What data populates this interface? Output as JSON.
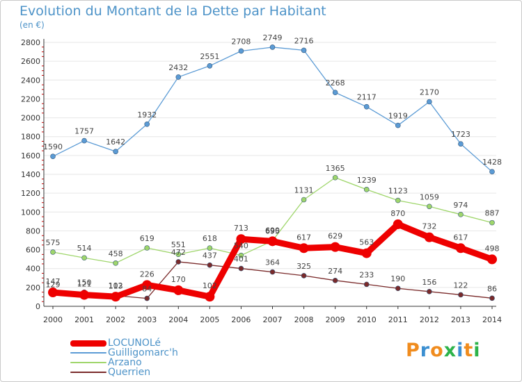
{
  "colors": {
    "title": "#4d93c8",
    "axis": "#333333",
    "grid": "#e6e6e6",
    "red_ticks": "#cc0000"
  },
  "brand": {
    "letters": [
      {
        "char": "P",
        "color": "#f08c1e"
      },
      {
        "char": "r",
        "color": "#3b8fd1"
      },
      {
        "char": "o",
        "color": "#f08c1e"
      },
      {
        "char": "x",
        "color": "#2db34a"
      },
      {
        "char": "i",
        "color": "#3b8fd1"
      },
      {
        "char": "t",
        "color": "#f08c1e"
      },
      {
        "char": "i",
        "color": "#2db34a"
      }
    ]
  },
  "chart_data": {
    "type": "line",
    "title": "Evolution du Montant de la Dette par Habitant",
    "subtitle": "(en €)",
    "xlabel": "",
    "ylabel": "",
    "x": [
      "2000",
      "2001",
      "2002",
      "2003",
      "2004",
      "2005",
      "2006",
      "2007",
      "2008",
      "2009",
      "2010",
      "2011",
      "2012",
      "2013",
      "2014"
    ],
    "ylim": [
      0,
      2800
    ],
    "yticks": [
      0,
      200,
      400,
      600,
      800,
      1000,
      1200,
      1400,
      1600,
      1800,
      2000,
      2200,
      2400,
      2600,
      2800
    ],
    "grid": true,
    "legend_position": "bottom-left",
    "series": [
      {
        "name": "LOCUNOLé",
        "color": "#ee0000",
        "width": 9,
        "values": [
          147,
          121,
          102,
          226,
          170,
          102,
          713,
          690,
          617,
          629,
          563,
          870,
          732,
          617,
          498
        ]
      },
      {
        "name": "Guilligomarc'h",
        "color": "#5b9bd5",
        "width": 1.3,
        "values": [
          1590,
          1757,
          1642,
          1932,
          2432,
          2551,
          2708,
          2749,
          2716,
          2268,
          2117,
          1919,
          2170,
          1723,
          1428
        ]
      },
      {
        "name": "Arzano",
        "color": "#9fd66b",
        "width": 1.3,
        "values": [
          575,
          514,
          458,
          619,
          551,
          618,
          540,
          695,
          1131,
          1365,
          1239,
          1123,
          1059,
          974,
          887
        ]
      },
      {
        "name": "Querrien",
        "color": "#7a2a2a",
        "width": 1.3,
        "values": [
          129,
          150,
          113,
          84,
          472,
          437,
          401,
          364,
          325,
          274,
          233,
          190,
          156,
          122,
          86
        ]
      }
    ]
  }
}
